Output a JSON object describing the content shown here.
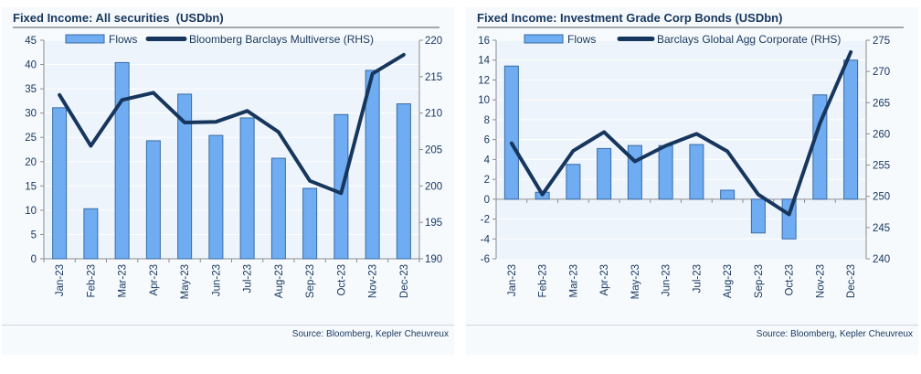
{
  "source_label": "Source: Bloomberg, Kepler Cheuvreux",
  "colors": {
    "bar_fill": "#6facf1",
    "bar_stroke": "#3a6ba5",
    "line": "#17365d",
    "panel_bg": "#f6fafd",
    "plot_bg": "#edf4fb",
    "gridline": "#ffffff",
    "axis": "#8c8c8c",
    "text": "#17365d",
    "title_rule": "#a6a6a6"
  },
  "chart_data": [
    {
      "type": "bar+line",
      "title": "Fixed Income: All securities  (USDbn)",
      "source": "Source: Bloomberg, Kepler Cheuvreux",
      "categories": [
        "Jan-23",
        "Feb-23",
        "Mar-23",
        "Apr-23",
        "May-23",
        "Jun-23",
        "Jul-23",
        "Aug-23",
        "Sep-23",
        "Oct-23",
        "Nov-23",
        "Dec-23"
      ],
      "series": [
        {
          "name": "Flows",
          "type": "bar",
          "axis": "left",
          "values": [
            31.1,
            10.3,
            40.4,
            24.3,
            33.9,
            25.4,
            29.0,
            20.7,
            14.5,
            29.7,
            38.8,
            31.9
          ]
        },
        {
          "name": "Bloomberg Barclays Multiverse (RHS)",
          "type": "line",
          "axis": "right",
          "values": [
            212.5,
            205.5,
            211.8,
            212.8,
            208.7,
            208.8,
            210.3,
            207.4,
            200.7,
            199.0,
            215.4,
            218.0
          ]
        }
      ],
      "left_axis": {
        "min": 0,
        "max": 45,
        "step": 5
      },
      "right_axis": {
        "min": 190,
        "max": 220,
        "step": 5
      },
      "grid": true,
      "legend_position": "top"
    },
    {
      "type": "bar+line",
      "title": "Fixed Income: Investment Grade Corp Bonds (USDbn)",
      "source": "Source: Bloomberg, Kepler Cheuvreux",
      "categories": [
        "Jan-23",
        "Feb-23",
        "Mar-23",
        "Apr-23",
        "May-23",
        "Jun-23",
        "Jul-23",
        "Aug-23",
        "Sep-23",
        "Oct-23",
        "Nov-23",
        "Dec-23"
      ],
      "series": [
        {
          "name": "Flows",
          "type": "bar",
          "axis": "left",
          "values": [
            13.4,
            0.7,
            3.5,
            5.1,
            5.4,
            5.4,
            5.5,
            0.9,
            -3.4,
            -4.0,
            10.5,
            14.0
          ]
        },
        {
          "name": "Barclays Global Agg Corporate (RHS)",
          "type": "line",
          "axis": "right",
          "values": [
            258.5,
            250.3,
            257.3,
            260.3,
            255.6,
            258.1,
            260.0,
            257.2,
            250.3,
            247.1,
            261.7,
            273.1
          ]
        }
      ],
      "left_axis": {
        "min": -6,
        "max": 16,
        "step": 2
      },
      "right_axis": {
        "min": 240,
        "max": 275,
        "step": 5
      },
      "grid": true,
      "legend_position": "top"
    }
  ]
}
